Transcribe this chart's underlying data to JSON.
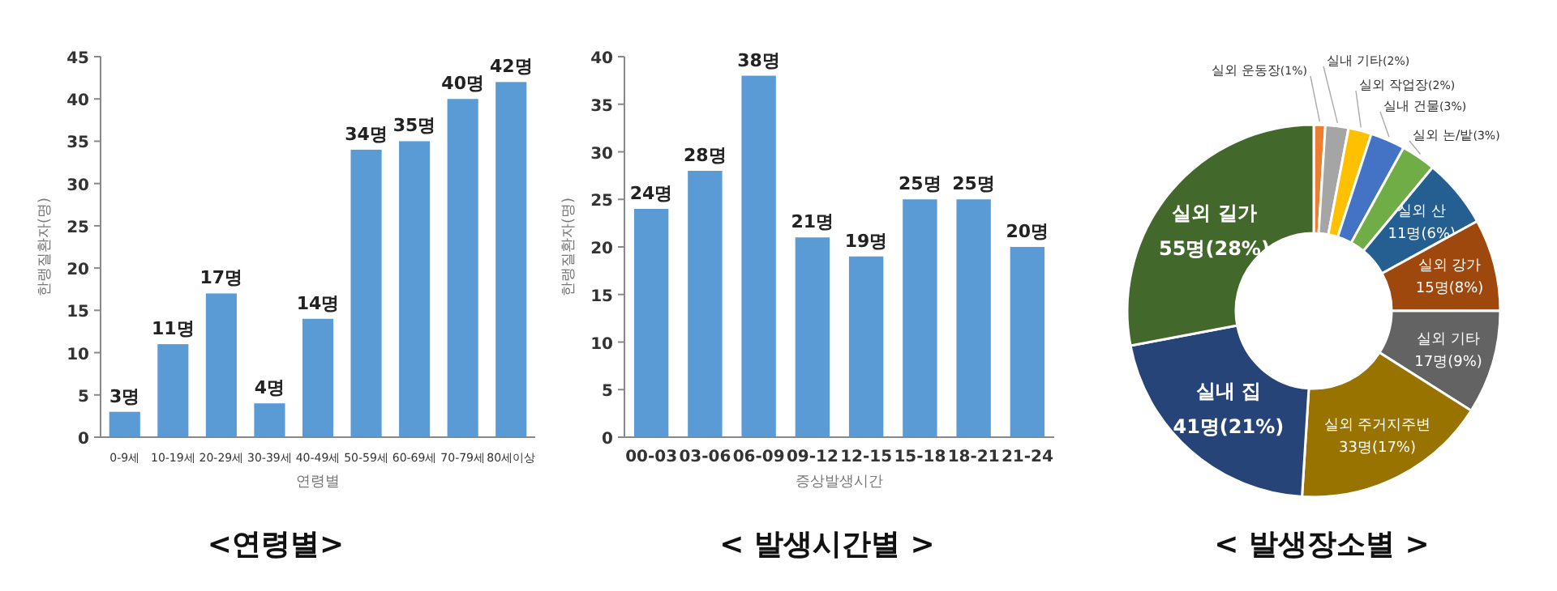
{
  "chart_data": [
    {
      "type": "bar",
      "title": "<연령별>",
      "xlabel": "연령별",
      "ylabel": "한랭질환자(명)",
      "categories": [
        "0-9세",
        "10-19세",
        "20-29세",
        "30-39세",
        "40-49세",
        "50-59세",
        "60-69세",
        "70-79세",
        "80세이상"
      ],
      "values": [
        3,
        11,
        17,
        4,
        14,
        34,
        35,
        40,
        42
      ],
      "value_labels": [
        "3명",
        "11명",
        "17명",
        "4명",
        "14명",
        "34명",
        "35명",
        "40명",
        "42명"
      ],
      "color": "#5b9bd5",
      "ylim": [
        0,
        45
      ],
      "yticks": [
        0,
        5,
        10,
        15,
        20,
        25,
        30,
        35,
        40,
        45
      ],
      "grid": false
    },
    {
      "type": "bar",
      "title": "< 발생시간별 >",
      "xlabel": "증상발생시간",
      "ylabel": "한랭질환자(명)",
      "categories": [
        "00-03",
        "03-06",
        "06-09",
        "09-12",
        "12-15",
        "15-18",
        "18-21",
        "21-24"
      ],
      "values": [
        24,
        28,
        38,
        21,
        19,
        25,
        25,
        20
      ],
      "value_labels": [
        "24명",
        "28명",
        "38명",
        "21명",
        "19명",
        "25명",
        "25명",
        "20명"
      ],
      "color": "#5b9bd5",
      "ylim": [
        0,
        40
      ],
      "yticks": [
        0,
        5,
        10,
        15,
        20,
        25,
        30,
        35,
        40
      ],
      "grid": false
    },
    {
      "type": "donut",
      "title": "< 발생장소별 >",
      "categories": [
        "실외 운동장",
        "실내 기타",
        "실외 작업장",
        "실내 건물",
        "실외 논/밭",
        "실외 산",
        "실외 강가",
        "실외 기타",
        "실외 주거지주변",
        "실내 집",
        "실외 길가"
      ],
      "values": [
        1,
        2,
        2,
        3,
        3,
        6,
        8,
        9,
        17,
        21,
        28
      ],
      "value_labels": [
        "(1%)",
        "(2%)",
        "(2%)",
        "(3%)",
        "(3%)",
        "11명(6%)",
        "15명(8%)",
        "17명(9%)",
        "33명(17%)",
        "41명(21%)",
        "55명(28%)"
      ],
      "colors": [
        "#ed7d31",
        "#a5a5a5",
        "#ffc000",
        "#4472c4",
        "#70ad47",
        "#255e91",
        "#9e480e",
        "#636363",
        "#997300",
        "#264478",
        "#43682b"
      ]
    }
  ]
}
